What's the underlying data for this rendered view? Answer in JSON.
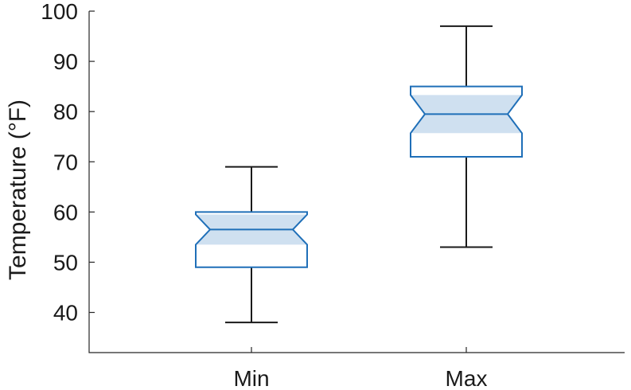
{
  "chart_data": {
    "type": "boxplot",
    "title": "",
    "xlabel": "",
    "ylabel": "Temperature (°F)",
    "ylim": [
      32,
      100
    ],
    "yticks": [
      40,
      50,
      60,
      70,
      80,
      90,
      100
    ],
    "notched": true,
    "grid": false,
    "colors": {
      "box": "#1f6fb8",
      "notch_fill": "#cfe0f0",
      "whisker": "#1a1a1a",
      "axis": "#262626"
    },
    "categories": [
      "Min",
      "Max"
    ],
    "boxes": [
      {
        "category": "Min",
        "min": 38,
        "q1": 49,
        "median": 56.5,
        "q3": 60,
        "max": 69,
        "notch_low": 53.5,
        "notch_high": 59.5
      },
      {
        "category": "Max",
        "min": 53,
        "q1": 71,
        "median": 79.5,
        "q3": 85,
        "max": 97,
        "notch_low": 75.7,
        "notch_high": 83.3
      }
    ]
  }
}
